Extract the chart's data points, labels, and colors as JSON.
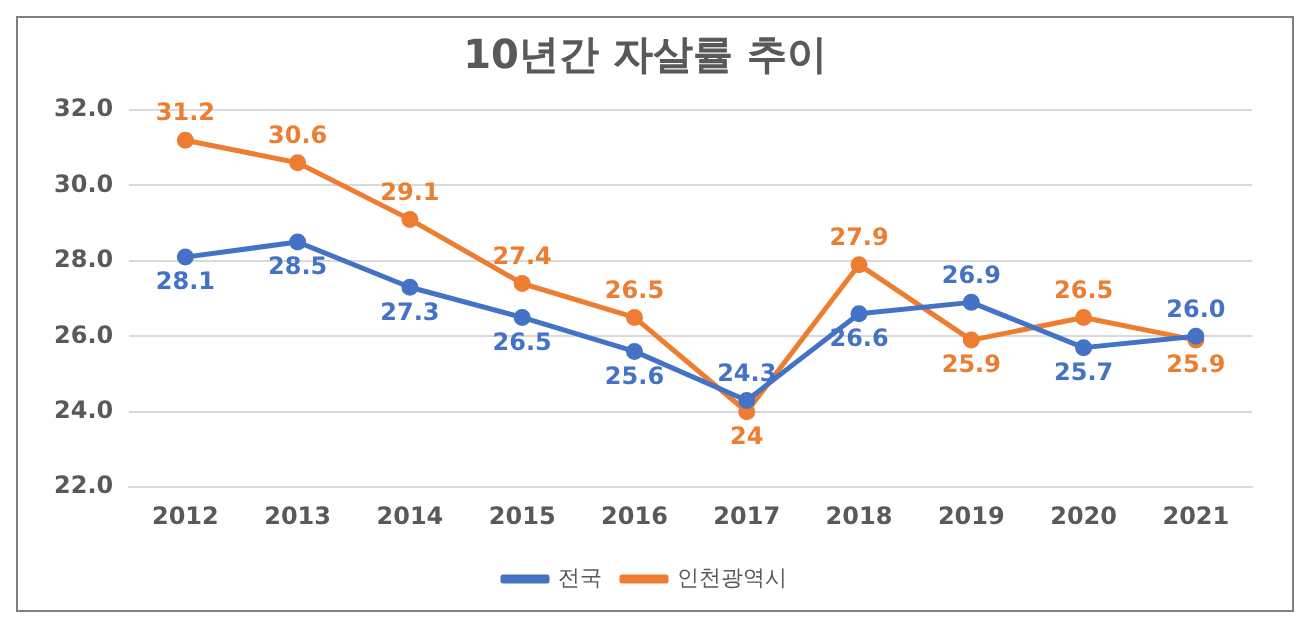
{
  "chart_data": {
    "type": "line",
    "title": "10년간 자살률 추이",
    "categories": [
      "2012",
      "2013",
      "2014",
      "2015",
      "2016",
      "2017",
      "2018",
      "2019",
      "2020",
      "2021"
    ],
    "series": [
      {
        "name": "전국",
        "color": "#4472c4",
        "values": [
          28.1,
          28.5,
          27.3,
          26.5,
          25.6,
          24.3,
          26.6,
          26.9,
          25.7,
          26.0
        ],
        "value_labels": [
          "28.1",
          "28.5",
          "27.3",
          "26.5",
          "25.6",
          "24.3",
          "26.6",
          "26.9",
          "25.7",
          "26.0"
        ]
      },
      {
        "name": "인천광역시",
        "color": "#ed7d31",
        "values": [
          31.2,
          30.6,
          29.1,
          27.4,
          26.5,
          24,
          27.9,
          25.9,
          26.5,
          25.9
        ],
        "value_labels": [
          "31.2",
          "30.6",
          "29.1",
          "27.4",
          "26.5",
          "24",
          "27.9",
          "25.9",
          "26.5",
          "25.9"
        ]
      }
    ],
    "ylim": [
      22,
      32
    ],
    "yticks": [
      {
        "value": 22,
        "label": "22.0"
      },
      {
        "value": 24,
        "label": "24.0"
      },
      {
        "value": 26,
        "label": "26.0"
      },
      {
        "value": 28,
        "label": "28.0"
      },
      {
        "value": 30,
        "label": "30.0"
      },
      {
        "value": 32,
        "label": "32.0"
      }
    ],
    "grid": "y",
    "legend": "bottom",
    "marker": "circle",
    "line_style": "solid"
  }
}
